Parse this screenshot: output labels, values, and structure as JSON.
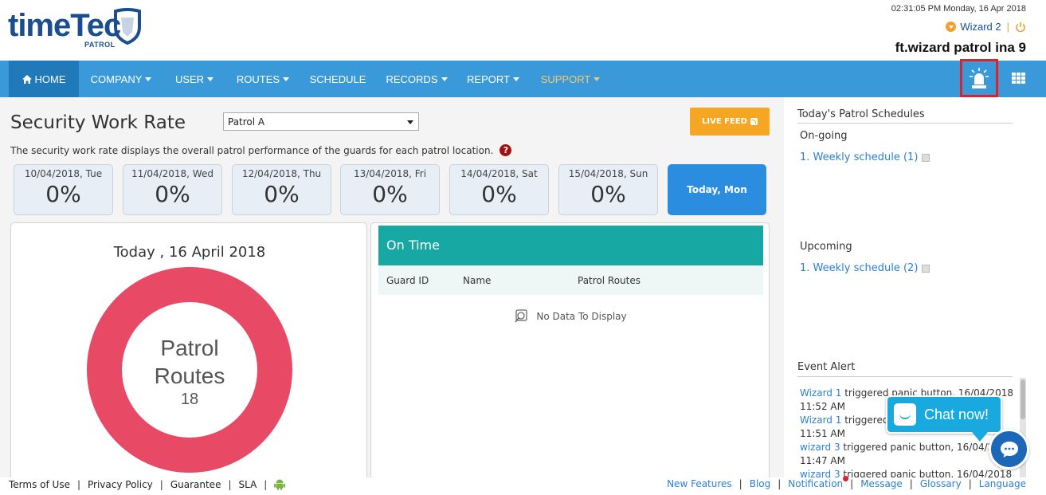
{
  "header": {
    "logo_time": "time",
    "logo_tec": "Tec",
    "logo_patrol": "PATROL",
    "datetime": "02:31:05 PM Monday, 16 Apr 2018",
    "user": "Wizard 2",
    "separator": "|",
    "company": "ft.wizard patrol ina 9"
  },
  "nav": {
    "home": "HOME",
    "company": "COMPANY",
    "user": "USER",
    "routes": "ROUTES",
    "schedule": "SCHEDULE",
    "records": "RECORDS",
    "report": "REPORT",
    "support": "SUPPORT"
  },
  "main": {
    "title": "Security Work Rate",
    "select_value": "Patrol A",
    "live_feed": "LIVE FEED",
    "description": "The security work rate displays the overall patrol performance of the guards for each patrol location.",
    "days": [
      {
        "label": "10/04/2018, Tue",
        "value": "0%"
      },
      {
        "label": "11/04/2018, Wed",
        "value": "0%"
      },
      {
        "label": "12/04/2018, Thu",
        "value": "0%"
      },
      {
        "label": "13/04/2018, Fri",
        "value": "0%"
      },
      {
        "label": "14/04/2018, Sat",
        "value": "0%"
      },
      {
        "label": "15/04/2018, Sun",
        "value": "0%"
      }
    ],
    "today_button": "Today, Mon",
    "summary": {
      "date": "Today , 16 April 2018",
      "label_line1": "Patrol",
      "label_line2": "Routes",
      "count": "18"
    },
    "ontime": {
      "title": "On Time",
      "columns": [
        "Guard ID",
        "Name",
        "Patrol Routes"
      ],
      "no_data": "No Data To Display"
    }
  },
  "sidebar": {
    "title": "Today's Patrol Schedules",
    "ongoing_label": "On-going",
    "ongoing_link": "1. Weekly schedule (1)",
    "upcoming_label": "Upcoming",
    "upcoming_link": "1. Weekly schedule (2)",
    "event_title": "Event Alert",
    "events": [
      {
        "who": "Wizard 1",
        "text": " triggered panic button, 16/04/2018"
      },
      {
        "who": "",
        "text": "11:52 AM"
      },
      {
        "who": "Wizard 1",
        "text": " triggered"
      },
      {
        "who": "",
        "text": "11:51 AM"
      },
      {
        "who": "wizard 3",
        "text": " triggered panic button, 16/04/2018"
      },
      {
        "who": "",
        "text": "11:47 AM"
      },
      {
        "who": "wizard 3",
        "text": " triggered panic button, 16/04/2018"
      }
    ]
  },
  "chat": {
    "label": "Chat now!"
  },
  "footer": {
    "left": [
      "Terms of Use",
      "Privacy Policy",
      "Guarantee",
      "SLA"
    ],
    "right": [
      "New Features",
      "Blog",
      "Notification",
      "Message",
      "Glossary",
      "Language"
    ],
    "separator": "|"
  },
  "colors": {
    "nav_bg": "#3a9ad9",
    "nav_active": "#2079b8",
    "accent_orange": "#f5a623",
    "donut": "#e84a66",
    "ontime_teal": "#17a8a3",
    "today_blue": "#2a8de0",
    "alert_border": "#e0202a"
  }
}
